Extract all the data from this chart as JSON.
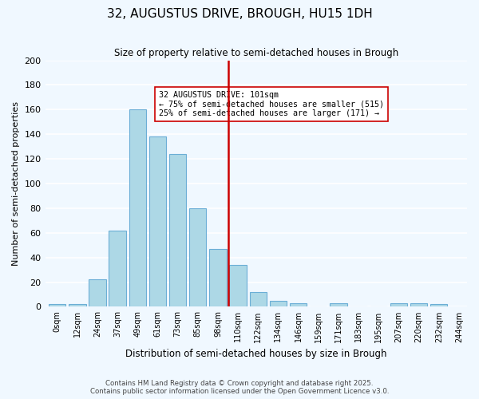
{
  "title": "32, AUGUSTUS DRIVE, BROUGH, HU15 1DH",
  "subtitle": "Size of property relative to semi-detached houses in Brough",
  "xlabel": "Distribution of semi-detached houses by size in Brough",
  "ylabel": "Number of semi-detached properties",
  "bin_labels": [
    "0sqm",
    "12sqm",
    "24sqm",
    "37sqm",
    "49sqm",
    "61sqm",
    "73sqm",
    "85sqm",
    "98sqm",
    "110sqm",
    "122sqm",
    "134sqm",
    "146sqm",
    "159sqm",
    "171sqm",
    "183sqm",
    "195sqm",
    "207sqm",
    "220sqm",
    "232sqm",
    "244sqm"
  ],
  "bar_values": [
    2,
    2,
    22,
    62,
    160,
    138,
    124,
    80,
    47,
    34,
    12,
    5,
    3,
    0,
    3,
    0,
    0,
    3,
    3,
    2
  ],
  "bar_color": "#add8e6",
  "bar_edge_color": "#6baed6",
  "vline_label_idx": 8,
  "vline_color": "#cc0000",
  "annotation_title": "32 AUGUSTUS DRIVE: 101sqm",
  "annotation_line1": "← 75% of semi-detached houses are smaller (515)",
  "annotation_line2": "25% of semi-detached houses are larger (171) →",
  "ylim": [
    0,
    200
  ],
  "yticks": [
    0,
    20,
    40,
    60,
    80,
    100,
    120,
    140,
    160,
    180,
    200
  ],
  "footnote1": "Contains HM Land Registry data © Crown copyright and database right 2025.",
  "footnote2": "Contains public sector information licensed under the Open Government Licence v3.0.",
  "bg_color": "#f0f8ff"
}
